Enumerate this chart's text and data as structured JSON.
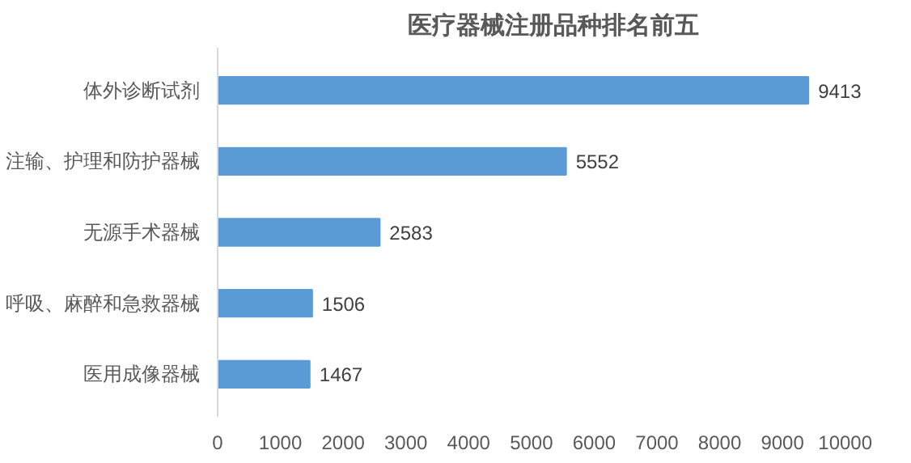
{
  "chart_data": {
    "type": "bar",
    "orientation": "horizontal",
    "title": "医疗器械注册品种排名前五",
    "categories": [
      "体外诊断试剂",
      "注输、护理和防护器械",
      "无源手术器械",
      "呼吸、麻醉和急救器械",
      "医用成像器械"
    ],
    "values": [
      9413,
      5552,
      2583,
      1506,
      1467
    ],
    "color": "#5b9bd5",
    "data_labels": true,
    "xlim": [
      0,
      10000
    ],
    "xticks": [
      0,
      1000,
      2000,
      3000,
      4000,
      5000,
      6000,
      7000,
      8000,
      9000,
      10000
    ],
    "grid": false
  }
}
